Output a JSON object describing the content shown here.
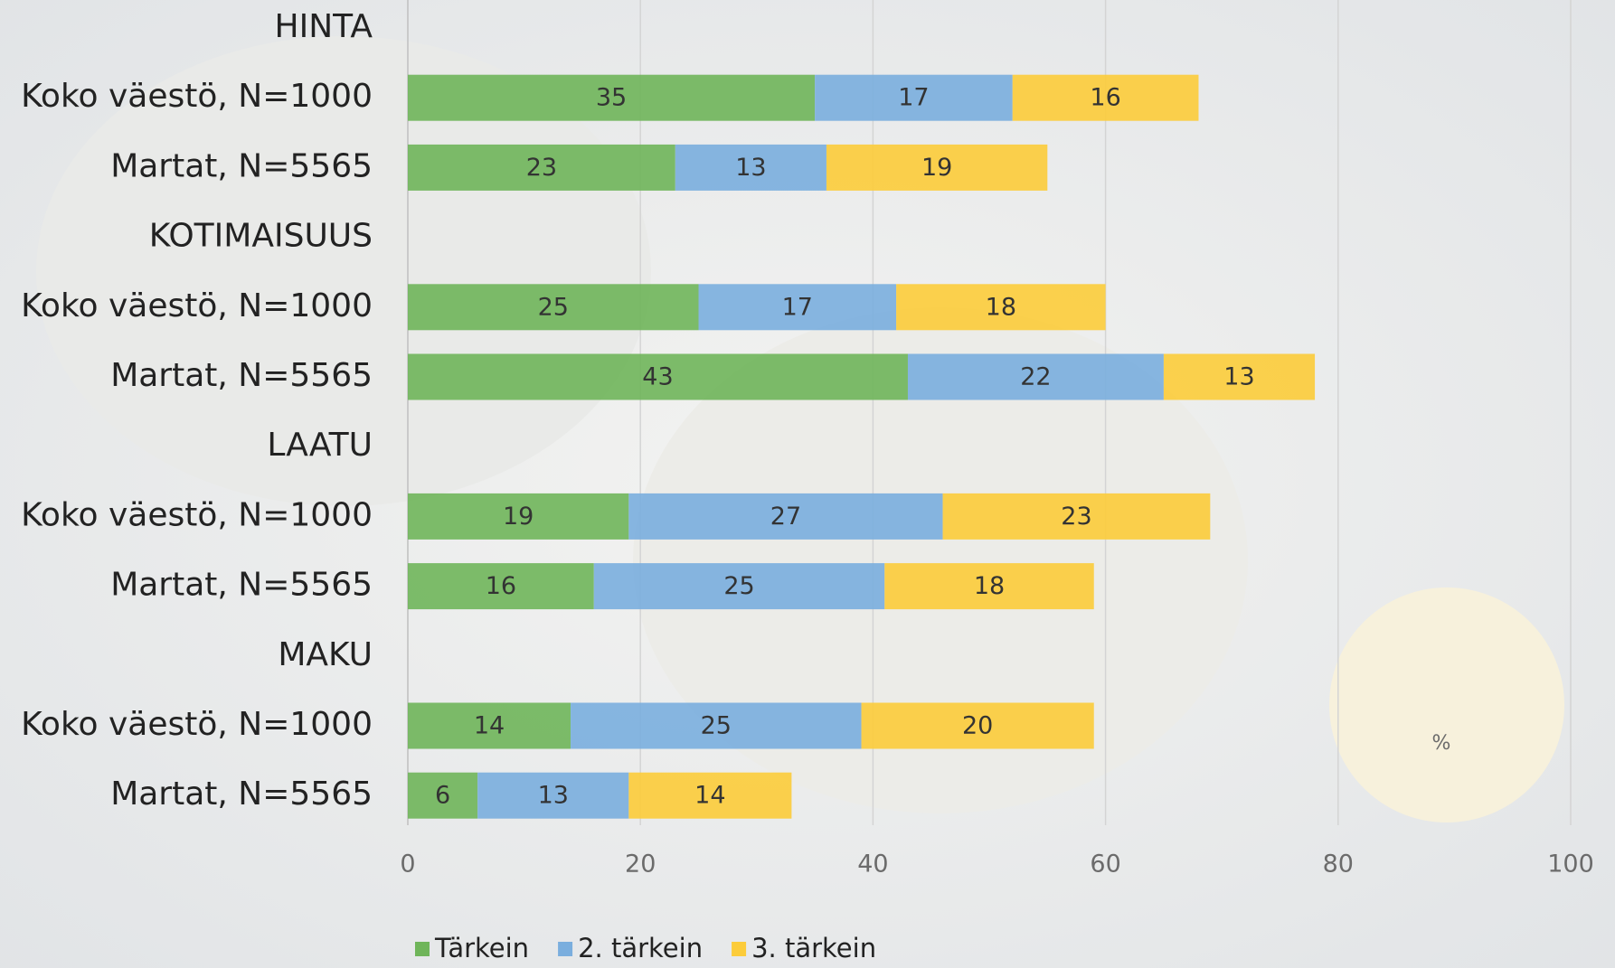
{
  "chart_data": {
    "type": "stacked-bar-horizontal",
    "categories": [
      "HINTA",
      "Koko väestö, N=1000",
      "Martat, N=5565",
      "KOTIMAISUUS",
      "Koko väestö, N=1000",
      "Martat, N=5565",
      "LAATU",
      "Koko väestö, N=1000",
      "Martat, N=5565",
      "MAKU",
      "Koko väestö, N=1000",
      "Martat, N=5565"
    ],
    "series": [
      {
        "name": "Tärkein",
        "color": "#6fb55a",
        "values": [
          null,
          35,
          23,
          null,
          25,
          43,
          null,
          19,
          16,
          null,
          14,
          6
        ]
      },
      {
        "name": "2. tärkein",
        "color": "#7aaede",
        "values": [
          null,
          17,
          13,
          null,
          17,
          22,
          null,
          27,
          25,
          null,
          25,
          13
        ]
      },
      {
        "name": "3. tärkein",
        "color": "#fccc3a",
        "values": [
          null,
          16,
          19,
          null,
          18,
          13,
          null,
          23,
          18,
          null,
          20,
          14
        ]
      }
    ],
    "xlim": [
      0,
      100
    ],
    "xticks": [
      0,
      20,
      40,
      60,
      80,
      100
    ],
    "grid": true,
    "annotation": "%",
    "legend": "bottom"
  }
}
